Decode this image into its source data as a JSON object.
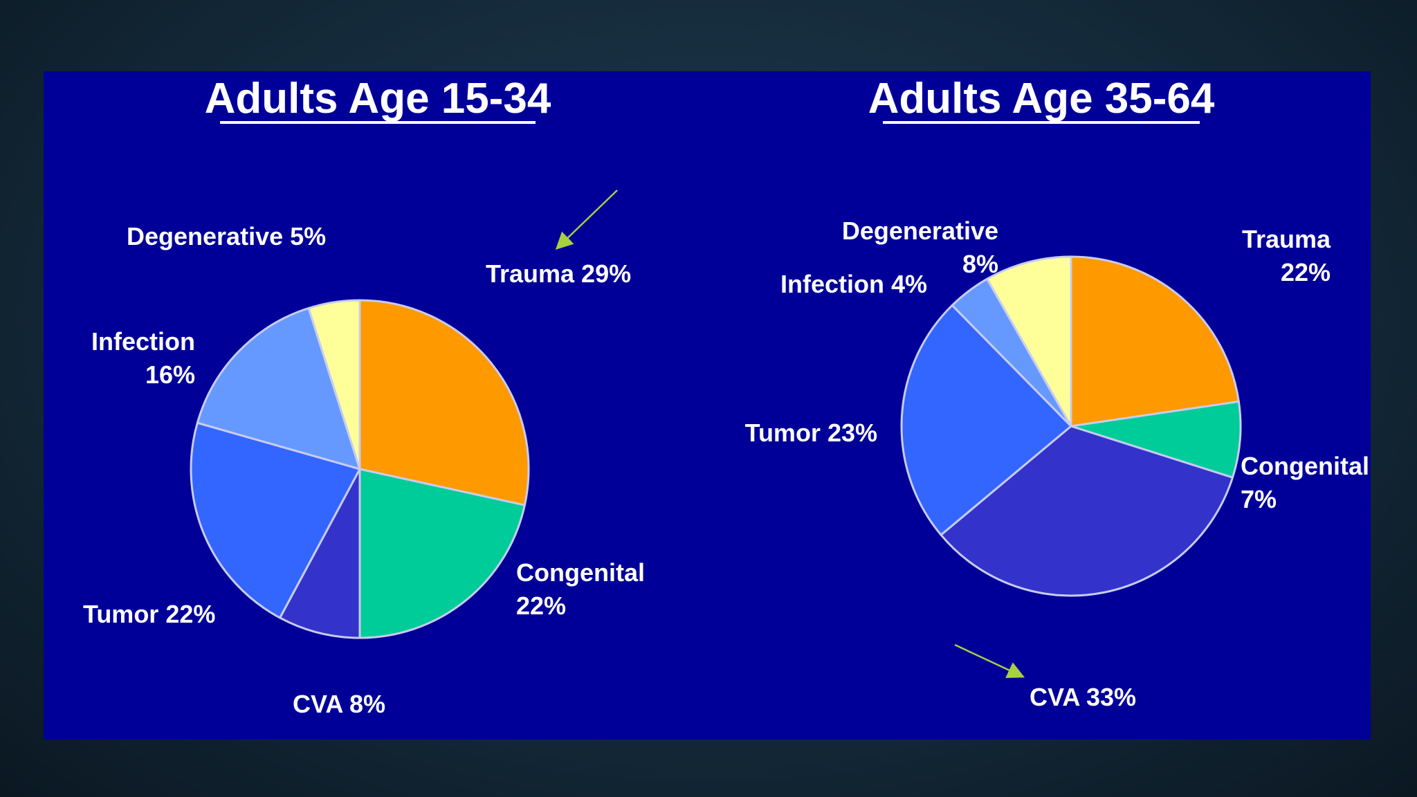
{
  "colors": {
    "panel": "#000099",
    "slice_border": "#c8ccee",
    "arrow": "#a8d040",
    "text": "#ffffff"
  },
  "chart_data": [
    {
      "type": "pie",
      "title": "Adults Age 15-34",
      "slices": [
        {
          "name": "Trauma",
          "label": "Trauma 29%",
          "value": 29,
          "color": "#ff9900"
        },
        {
          "name": "Congenital",
          "label": "Congenital\n22%",
          "value": 22,
          "color": "#00cc99"
        },
        {
          "name": "CVA",
          "label": "CVA 8%",
          "value": 8,
          "color": "#3333cc"
        },
        {
          "name": "Tumor",
          "label": "Tumor 22%",
          "value": 22,
          "color": "#3366ff"
        },
        {
          "name": "Infection",
          "label": "Infection\n16%",
          "value": 16,
          "color": "#6699ff"
        },
        {
          "name": "Degenerative",
          "label": "Degenerative 5%",
          "value": 5,
          "color": "#ffff99"
        }
      ],
      "annotation": "arrow pointing to Trauma label"
    },
    {
      "type": "pie",
      "title": "Adults Age 35-64",
      "slices": [
        {
          "name": "Trauma",
          "label": "Trauma\n22%",
          "value": 22,
          "color": "#ff9900"
        },
        {
          "name": "Congenital",
          "label": "Congenital\n7%",
          "value": 7,
          "color": "#00cc99"
        },
        {
          "name": "CVA",
          "label": "CVA 33%",
          "value": 33,
          "color": "#3333cc"
        },
        {
          "name": "Tumor",
          "label": "Tumor 23%",
          "value": 23,
          "color": "#3366ff"
        },
        {
          "name": "Infection",
          "label": "Infection 4%",
          "value": 4,
          "color": "#6699ff"
        },
        {
          "name": "Degenerative",
          "label": "Degenerative\n8%",
          "value": 8,
          "color": "#ffff99"
        }
      ],
      "annotation": "arrow pointing to CVA label"
    }
  ]
}
